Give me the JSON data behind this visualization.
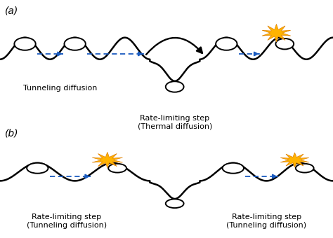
{
  "bg_color": "#ffffff",
  "line_color": "#000000",
  "arrow_color": "#1a5bbf",
  "label_a": "(a)",
  "label_b": "(b)",
  "text_tunneling": "Tunneling diffusion",
  "text_rate_thermal": "Rate-limiting step\n(Thermal diffusion)",
  "text_rate_tunnel1": "Rate-limiting step\n(Tunneling diffusion)",
  "text_rate_tunnel2": "Rate-limiting step\n(Tunneling diffusion)",
  "font_size_label": 10,
  "font_size_text": 8,
  "star_color": "#FFB300",
  "star_edge": "#E08000"
}
